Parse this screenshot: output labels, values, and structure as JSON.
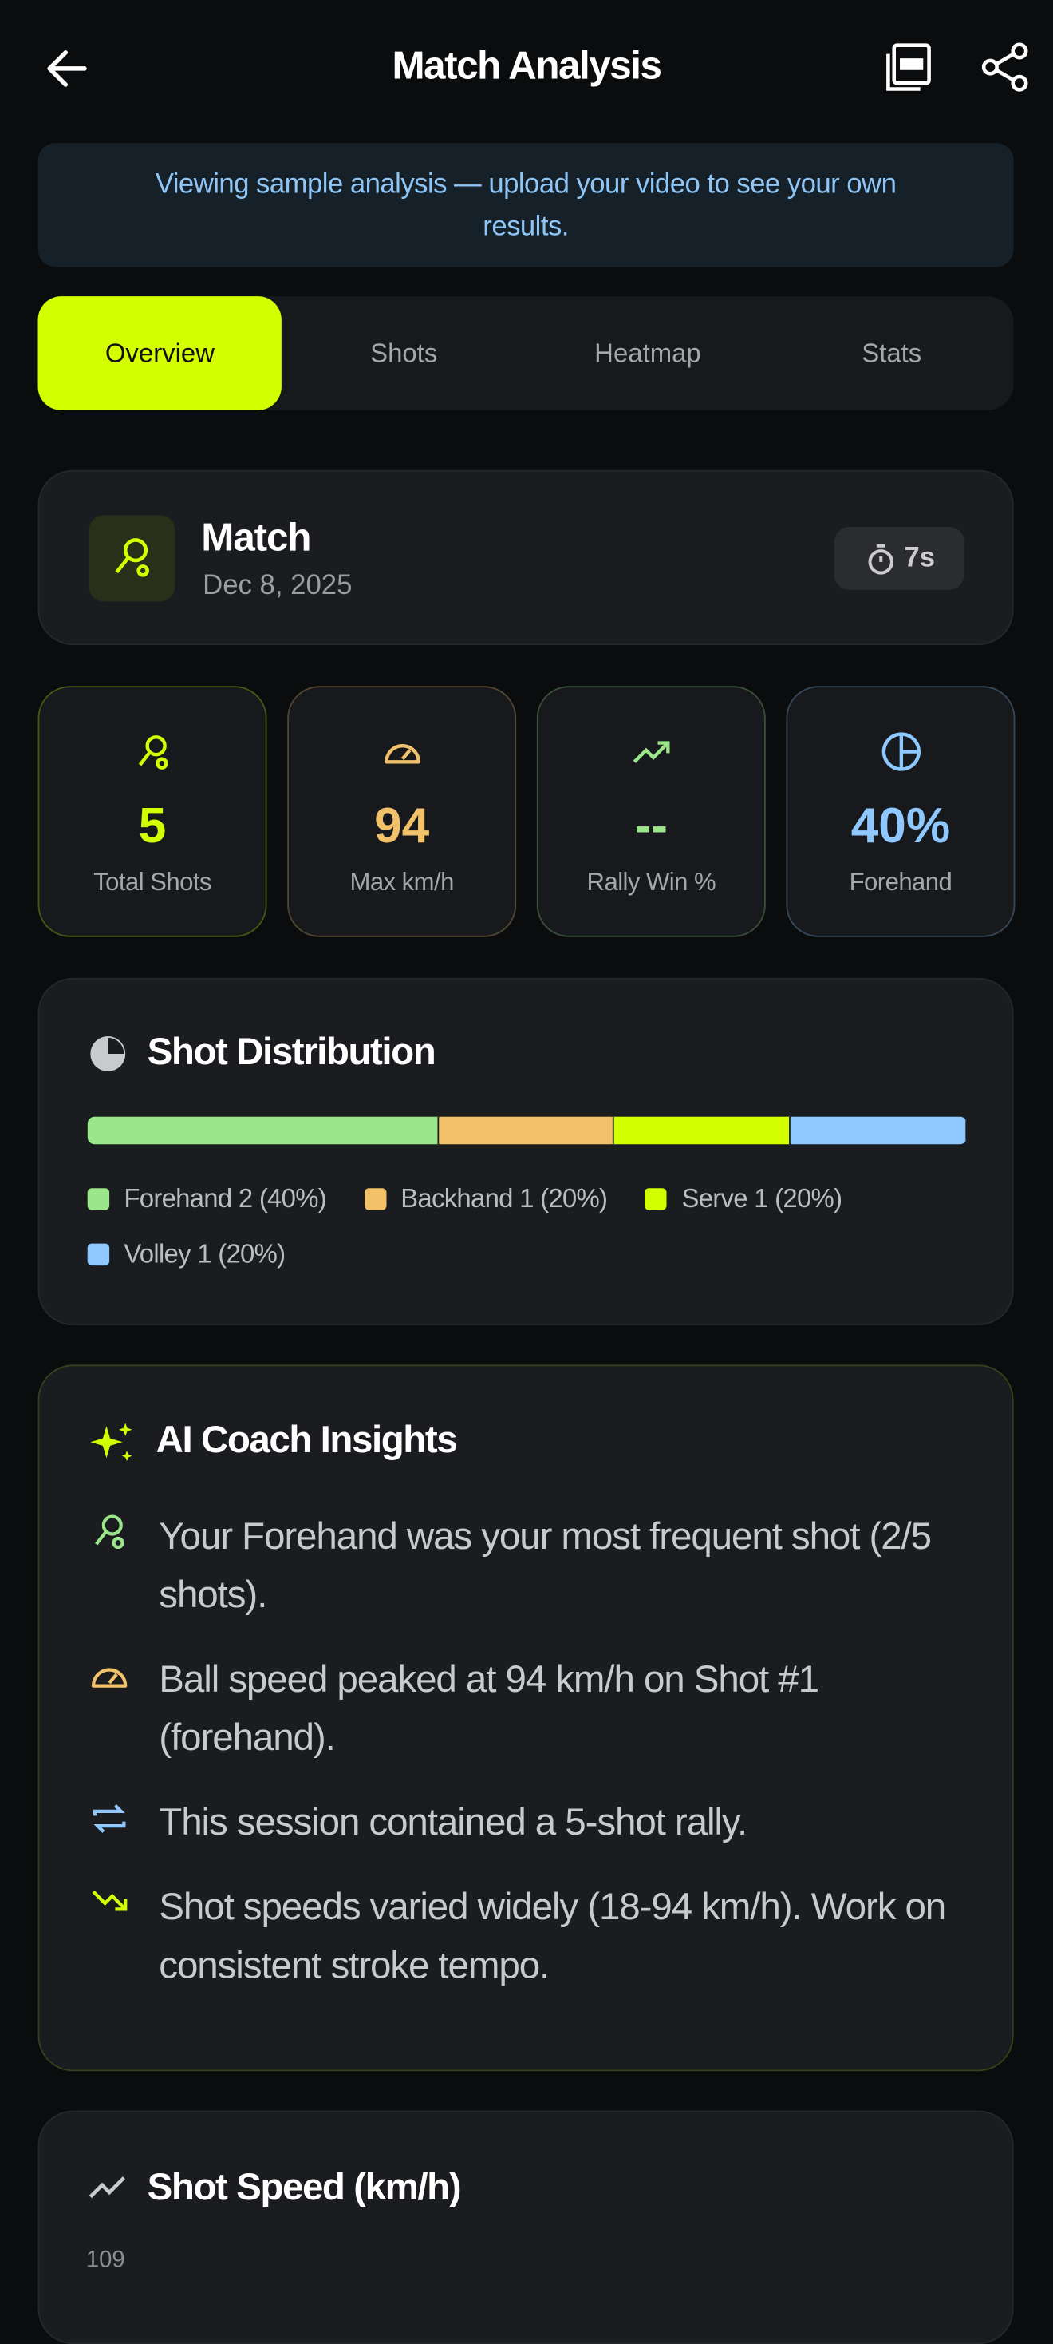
{
  "header": {
    "title": "Match Analysis"
  },
  "banner": {
    "text": "Viewing sample analysis — upload your video to see your own results."
  },
  "tabs": [
    {
      "label": "Overview",
      "active": true
    },
    {
      "label": "Shots",
      "active": false
    },
    {
      "label": "Heatmap",
      "active": false
    },
    {
      "label": "Stats",
      "active": false
    }
  ],
  "match": {
    "title": "Match",
    "date": "Dec 8, 2025",
    "duration": "7s"
  },
  "stats": [
    {
      "value": 5,
      "label": "Total Shots",
      "color": "#d4ff00"
    },
    {
      "value": 94,
      "label": "Max km/h",
      "color": "#f2c26b"
    },
    {
      "value": "--",
      "label": "Rally Win %",
      "color": "#9be58a"
    },
    {
      "value": "40%",
      "label": "Forehand",
      "color": "#8ec8ff"
    }
  ],
  "distribution": {
    "title": "Shot Distribution",
    "segments": [
      {
        "label": "Forehand 2 (40%)",
        "share": 40,
        "color": "#9be58a"
      },
      {
        "label": "Backhand 1 (20%)",
        "share": 20,
        "color": "#f2c26b"
      },
      {
        "label": "Serve 1 (20%)",
        "share": 20,
        "color": "#d4ff00"
      },
      {
        "label": "Volley 1 (20%)",
        "share": 20,
        "color": "#8ec8ff"
      }
    ]
  },
  "insights": {
    "title": "AI Coach Insights",
    "items": [
      "Your Forehand was your most frequent shot (2/5 shots).",
      "Ball speed peaked at 94 km/h on Shot #1 (forehand).",
      "This session contained a 5-shot rally.",
      "Shot speeds varied widely (18-94 km/h). Work on consistent stroke tempo."
    ]
  },
  "speed_chart": {
    "title": "Shot Speed (km/h)",
    "y_tick": 109
  }
}
